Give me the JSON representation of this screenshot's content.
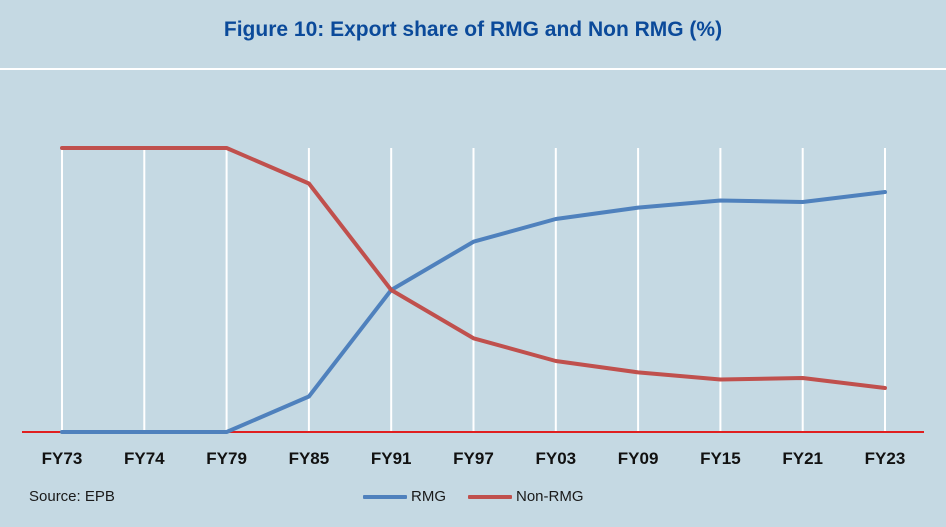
{
  "title": "Figure 10: Export share of RMG and Non RMG (%)",
  "source": "Source: EPB",
  "colors": {
    "background": "#c5d9e3",
    "title": "#0b4a9a",
    "rmg": "#4f81bd",
    "non_rmg": "#c0504d",
    "axis": "#e02020",
    "grid": "#ffffff"
  },
  "chart_data": {
    "type": "line",
    "title": "Figure 10: Export share of RMG and Non RMG (%)",
    "xlabel": "",
    "ylabel": "",
    "categories": [
      "FY73",
      "FY74",
      "FY79",
      "FY85",
      "FY91",
      "FY97",
      "FY03",
      "FY09",
      "FY15",
      "FY21",
      "FY23"
    ],
    "ylim": [
      0,
      100
    ],
    "grid": "vertical",
    "legend": "bottom",
    "series": [
      {
        "name": "RMG",
        "color": "#4f81bd",
        "values": [
          0,
          0,
          0,
          12.5,
          50,
          67,
          75,
          79,
          81.5,
          81,
          84.5
        ]
      },
      {
        "name": "Non-RMG",
        "color": "#c0504d",
        "values": [
          100,
          100,
          100,
          87.5,
          50,
          33,
          25,
          21,
          18.5,
          19,
          15.5
        ]
      }
    ]
  }
}
